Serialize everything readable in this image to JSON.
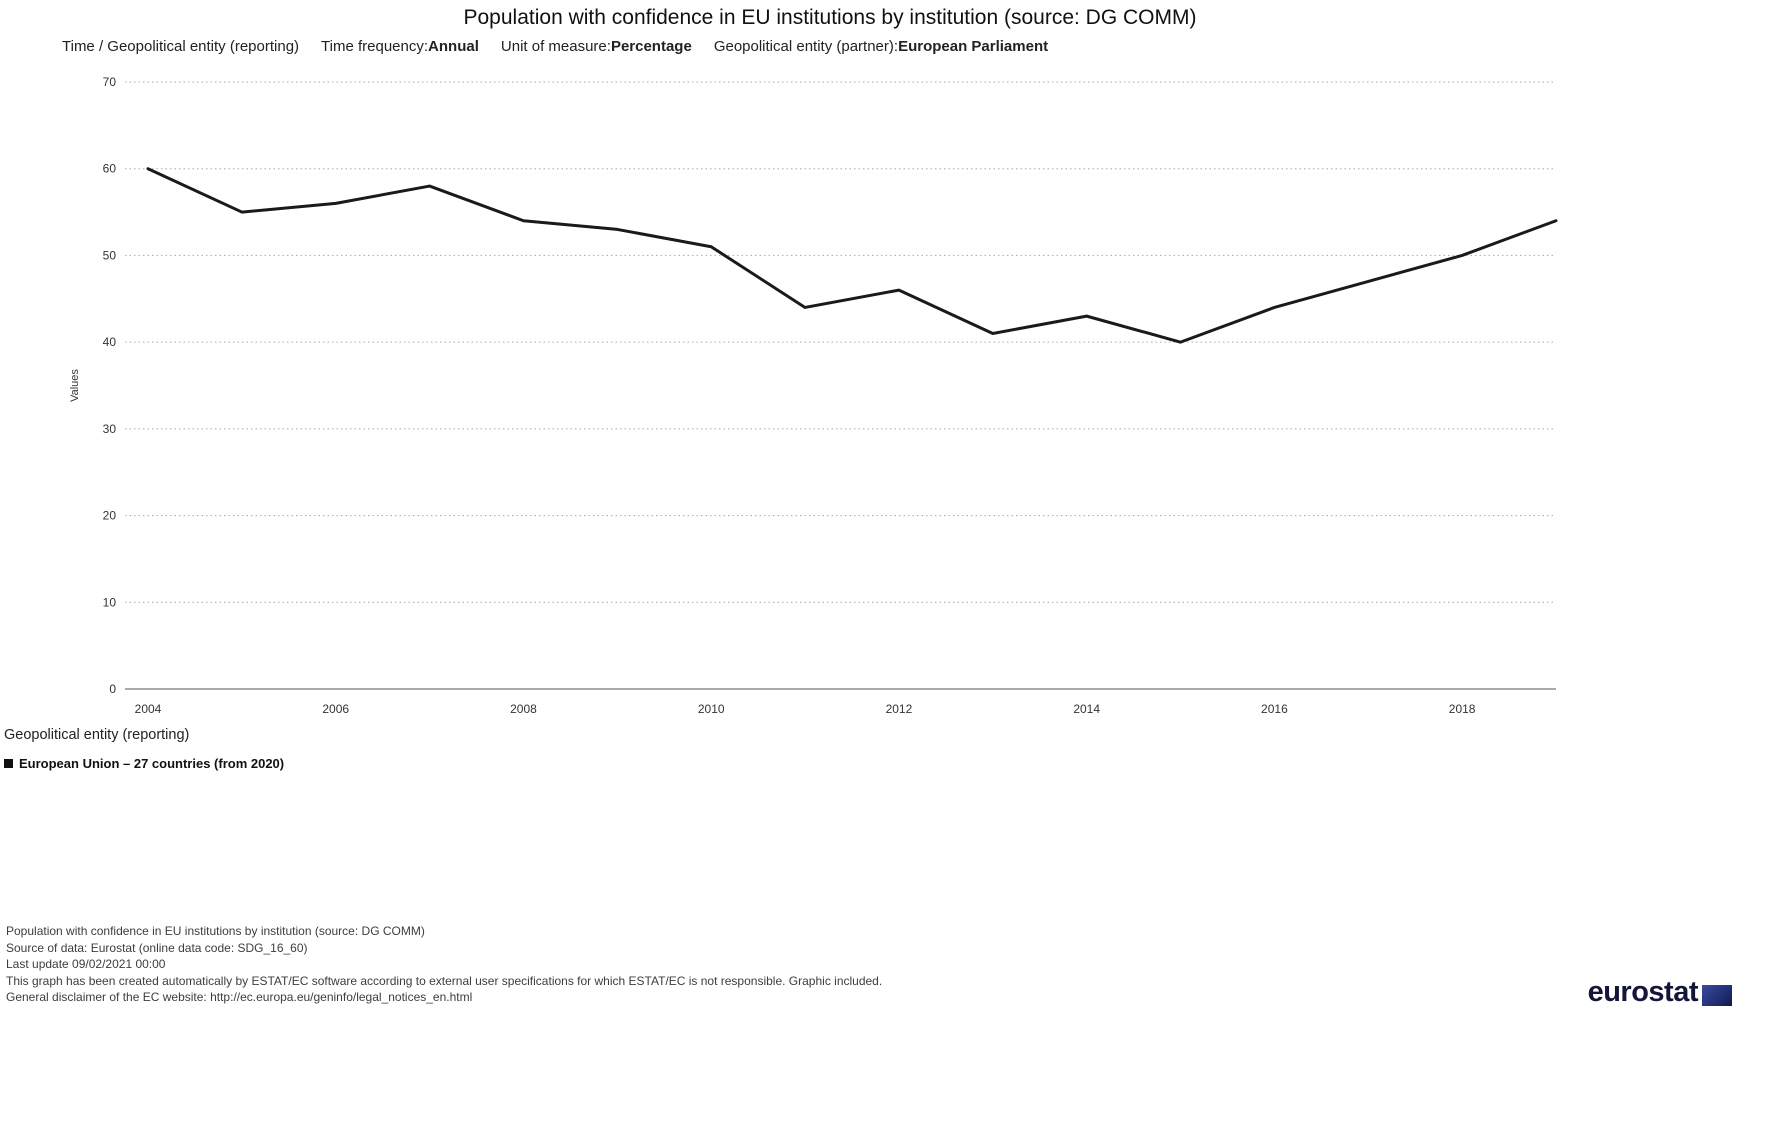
{
  "header": {
    "title": "Population with confidence in EU institutions by institution (source: DG COMM)",
    "subtitle": {
      "dims_label": "Time / Geopolitical entity (reporting)",
      "freq_label": "Time frequency:",
      "freq_value": "Annual",
      "unit_label": "Unit of measure:",
      "unit_value": "Percentage",
      "partner_label": "Geopolitical entity (partner):",
      "partner_value": "European Parliament"
    }
  },
  "chart_data": {
    "type": "line",
    "title": "Population with confidence in EU institutions by institution (source: DG COMM)",
    "xlabel": "",
    "ylabel": "Values",
    "ylim": [
      0,
      70
    ],
    "y_ticks": [
      0,
      10,
      20,
      30,
      40,
      50,
      60,
      70
    ],
    "grid": "dotted horizontal",
    "legend_position": "bottom-left",
    "line_color": "#1a1a1a",
    "x": [
      2004,
      2005,
      2006,
      2007,
      2008,
      2009,
      2010,
      2011,
      2012,
      2013,
      2014,
      2015,
      2016,
      2017,
      2018,
      2019
    ],
    "x_tick_labels": [
      "2004",
      "2006",
      "2008",
      "2010",
      "2012",
      "2014",
      "2016",
      "2018"
    ],
    "x_tick_years": [
      2004,
      2006,
      2008,
      2010,
      2012,
      2014,
      2016,
      2018
    ],
    "series": [
      {
        "name": "European Union – 27 countries (from 2020)",
        "values": [
          60,
          55,
          56,
          58,
          54,
          53,
          51,
          44,
          46,
          41,
          43,
          40,
          44,
          47,
          50,
          54
        ]
      }
    ]
  },
  "legend": {
    "title": "Geopolitical entity (reporting)",
    "items": [
      {
        "label": "European Union – 27 countries (from 2020)"
      }
    ]
  },
  "footer": {
    "lines": [
      "Population with confidence in EU institutions by institution (source: DG COMM)",
      "Source of data: Eurostat (online data code: SDG_16_60)",
      "Last update 09/02/2021 00:00",
      "This graph has been created automatically by ESTAT/EC software according to external user specifications for which ESTAT/EC is not responsible. Graphic included.",
      "General disclaimer of the EC website: http://ec.europa.eu/geninfo/legal_notices_en.html"
    ]
  },
  "logo": {
    "text": "eurostat"
  }
}
